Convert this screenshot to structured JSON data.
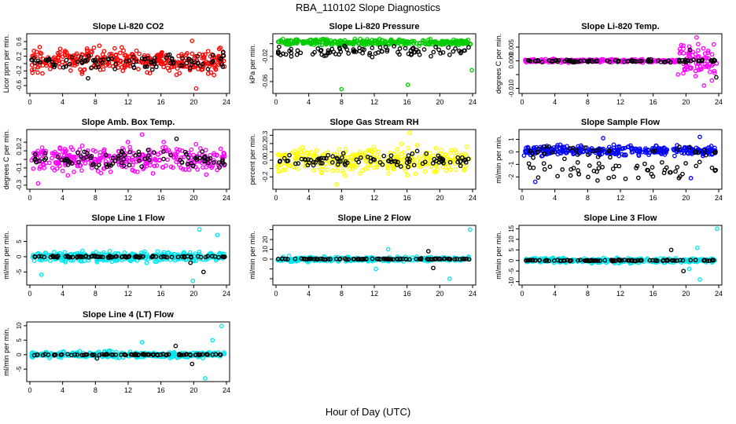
{
  "figure": {
    "title": "RBA_110102  Slope Diagnostics",
    "xlabel": "Hour of Day (UTC)"
  },
  "chart_data": [
    {
      "type": "scatter",
      "title": "Slope Li-820 CO2",
      "ylabel": "Licor ppm per min.",
      "xlim": [
        0,
        24
      ],
      "xticks": [
        0,
        4,
        8,
        12,
        16,
        20,
        24
      ],
      "ylim": [
        -0.75,
        0.75
      ],
      "yticks": [
        -0.6,
        -0.4,
        -0.2,
        0.0,
        0.2,
        0.4,
        0.6
      ],
      "ytick_labels": [
        "-0.6",
        "-0.2",
        "0.2",
        "0.6"
      ],
      "series": [
        {
          "color": "#ff0000",
          "center": 0.08,
          "spread": 0.28,
          "outliers": [
            [
              20.3,
              -0.68
            ],
            [
              19.8,
              0.62
            ],
            [
              1.2,
              0.45
            ]
          ]
        },
        {
          "color": "#000000",
          "center": 0.05,
          "spread": 0.18,
          "outliers": [
            [
              23.6,
              0.32
            ],
            [
              7.1,
              -0.4
            ]
          ]
        }
      ]
    },
    {
      "type": "scatter",
      "title": "Slope Li-820 Pressure",
      "ylabel": "kPa per min.",
      "xlim": [
        0,
        24
      ],
      "xticks": [
        0,
        4,
        8,
        12,
        16,
        20,
        24
      ],
      "ylim": [
        -0.075,
        0.012
      ],
      "yticks": [
        -0.06,
        -0.04,
        -0.02,
        0.0
      ],
      "ytick_labels": [
        "-0.06",
        "-0.02"
      ],
      "series": [
        {
          "color": "#00cc00",
          "center": 0.002,
          "spread": 0.004,
          "outliers": [
            [
              8.0,
              -0.072
            ],
            [
              16.1,
              -0.065
            ],
            [
              23.9,
              -0.042
            ]
          ]
        },
        {
          "color": "#000000",
          "center": -0.012,
          "spread": 0.007,
          "outliers": []
        }
      ]
    },
    {
      "type": "scatter",
      "title": "Slope Li-820 Temp.",
      "ylabel": "degrees C per min.",
      "xlim": [
        0,
        24
      ],
      "xticks": [
        0,
        4,
        8,
        12,
        16,
        20,
        24
      ],
      "ylim": [
        -0.011,
        0.009
      ],
      "yticks": [
        -0.01,
        -0.005,
        0.0,
        0.005
      ],
      "ytick_labels": [
        "-0.010",
        "0.000",
        "0.005"
      ],
      "series": [
        {
          "color": "#ff00ff",
          "center": 0.0,
          "spread": 0.0005,
          "outliers": [
            [
              21.3,
              0.0085
            ],
            [
              22.2,
              -0.009
            ],
            [
              23.4,
              0.006
            ]
          ]
        },
        {
          "color": "#000000",
          "center": 0.0,
          "spread": 0.0004,
          "outliers": [
            [
              23.7,
              -0.006
            ],
            [
              20.5,
              0.004
            ]
          ]
        }
      ]
    },
    {
      "type": "scatter",
      "title": "Slope Amb. Box Temp.",
      "ylabel": "degrees C per min.",
      "xlim": [
        0,
        24
      ],
      "xticks": [
        0,
        4,
        8,
        12,
        16,
        20,
        24
      ],
      "ylim": [
        -0.32,
        0.32
      ],
      "yticks": [
        -0.3,
        -0.2,
        -0.1,
        0.0,
        0.1,
        0.2
      ],
      "ytick_labels": [
        "-0.3",
        "-0.1",
        "0.1",
        "0.2"
      ],
      "series": [
        {
          "color": "#ff00ff",
          "center": 0.0,
          "spread": 0.13,
          "outliers": [
            [
              1.0,
              -0.28
            ],
            [
              13.7,
              0.29
            ]
          ]
        },
        {
          "color": "#000000",
          "center": 0.0,
          "spread": 0.1,
          "outliers": [
            [
              17.9,
              0.24
            ]
          ]
        }
      ]
    },
    {
      "type": "scatter",
      "title": "Slope Gas Stream RH",
      "ylabel": "percent per min.",
      "xlim": [
        0,
        24
      ],
      "xticks": [
        0,
        4,
        8,
        12,
        16,
        20,
        24
      ],
      "ylim": [
        -0.32,
        0.34
      ],
      "yticks": [
        -0.2,
        -0.1,
        0.0,
        0.1,
        0.2,
        0.3
      ],
      "ytick_labels": [
        "-0.2",
        "0.0",
        "0.1",
        "0.2",
        "0.3"
      ],
      "series": [
        {
          "color": "#ffff00",
          "center": 0.0,
          "spread": 0.13,
          "outliers": [
            [
              16.3,
              0.33
            ],
            [
              7.4,
              -0.29
            ]
          ]
        },
        {
          "color": "#000000",
          "center": 0.0,
          "spread": 0.07,
          "outliers": []
        }
      ]
    },
    {
      "type": "scatter",
      "title": "Slope Sample Flow",
      "ylabel": "ml/min per min.",
      "xlim": [
        0,
        24
      ],
      "xticks": [
        0,
        4,
        8,
        12,
        16,
        20,
        24
      ],
      "ylim": [
        -2.8,
        1.6
      ],
      "yticks": [
        -2,
        -1,
        0,
        1
      ],
      "ytick_labels": [
        "-2",
        "-1",
        "0",
        "1"
      ],
      "series": [
        {
          "color": "#0000ff",
          "center": 0.1,
          "spread": 0.35,
          "outliers": [
            [
              1.6,
              -2.4
            ],
            [
              20.6,
              -2.1
            ],
            [
              9.9,
              1.1
            ],
            [
              21.7,
              1.2
            ]
          ]
        },
        {
          "color": "#000000",
          "center": -1.0,
          "spread": 0.6,
          "outliers": []
        }
      ]
    },
    {
      "type": "scatter",
      "title": "Slope Line 1 Flow",
      "ylabel": "ml/min per min.",
      "xlim": [
        0,
        24
      ],
      "xticks": [
        0,
        4,
        8,
        12,
        16,
        20,
        24
      ],
      "ylim": [
        -8.5,
        9.5
      ],
      "yticks": [
        -5,
        0,
        5
      ],
      "ytick_labels": [
        "-5",
        "0",
        "5"
      ],
      "series": [
        {
          "color": "#00e5ee",
          "center": 0.0,
          "spread": 1.4,
          "outliers": [
            [
              20.7,
              8.9
            ],
            [
              19.9,
              -7.9
            ],
            [
              1.4,
              -5.9
            ],
            [
              22.9,
              7.1
            ]
          ]
        },
        {
          "color": "#000000",
          "center": 0.0,
          "spread": 0.25,
          "outliers": [
            [
              21.2,
              -5.0
            ],
            [
              19.6,
              -2.0
            ]
          ]
        }
      ]
    },
    {
      "type": "scatter",
      "title": "Slope Line 2 Flow",
      "ylabel": "ml/min per min.",
      "xlim": [
        0,
        24
      ],
      "xticks": [
        0,
        4,
        8,
        12,
        16,
        20,
        24
      ],
      "ylim": [
        -24,
        32
      ],
      "yticks": [
        -20,
        -10,
        0,
        10,
        20,
        30
      ],
      "ytick_labels": [
        "0",
        "10",
        "20"
      ],
      "series": [
        {
          "color": "#00e5ee",
          "center": 0.0,
          "spread": 2.0,
          "outliers": [
            [
              23.7,
              30
            ],
            [
              21.2,
              -20
            ],
            [
              12.2,
              -10
            ],
            [
              13.7,
              10
            ]
          ]
        },
        {
          "color": "#000000",
          "center": 0.0,
          "spread": 0.5,
          "outliers": [
            [
              18.6,
              8
            ],
            [
              19.2,
              -9
            ]
          ]
        }
      ]
    },
    {
      "type": "scatter",
      "title": "Slope Line 3 Flow",
      "ylabel": "ml/min per min.",
      "xlim": [
        0,
        24
      ],
      "xticks": [
        0,
        4,
        8,
        12,
        16,
        20,
        24
      ],
      "ylim": [
        -10.5,
        15.5
      ],
      "yticks": [
        -10,
        -5,
        0,
        5,
        10,
        15
      ],
      "ytick_labels": [
        "-10",
        "-5",
        "0",
        "5",
        "10",
        "15"
      ],
      "series": [
        {
          "color": "#00e5ee",
          "center": 0.0,
          "spread": 1.0,
          "outliers": [
            [
              23.8,
              15
            ],
            [
              21.4,
              6
            ],
            [
              20.4,
              -4
            ],
            [
              21.7,
              -9
            ]
          ]
        },
        {
          "color": "#000000",
          "center": 0.0,
          "spread": 0.3,
          "outliers": [
            [
              18.2,
              5
            ],
            [
              19.7,
              -5
            ]
          ]
        }
      ]
    },
    {
      "type": "scatter",
      "title": "Slope Line 4 (LT) Flow",
      "ylabel": "ml/min per min.",
      "xlim": [
        0,
        24
      ],
      "xticks": [
        0,
        4,
        8,
        12,
        16,
        20,
        24
      ],
      "ylim": [
        -8.5,
        10.5
      ],
      "yticks": [
        -5,
        0,
        5,
        10
      ],
      "ytick_labels": [
        "-5",
        "0",
        "5",
        "10"
      ],
      "series": [
        {
          "color": "#00e5ee",
          "center": 0.0,
          "spread": 0.9,
          "outliers": [
            [
              23.4,
              9.9
            ],
            [
              21.4,
              -8.2
            ],
            [
              13.7,
              4.3
            ],
            [
              22.3,
              5.0
            ]
          ]
        },
        {
          "color": "#000000",
          "center": 0.0,
          "spread": 0.2,
          "outliers": [
            [
              17.8,
              3.0
            ],
            [
              19.8,
              -3.2
            ],
            [
              8.2,
              -1.3
            ]
          ]
        }
      ]
    }
  ]
}
